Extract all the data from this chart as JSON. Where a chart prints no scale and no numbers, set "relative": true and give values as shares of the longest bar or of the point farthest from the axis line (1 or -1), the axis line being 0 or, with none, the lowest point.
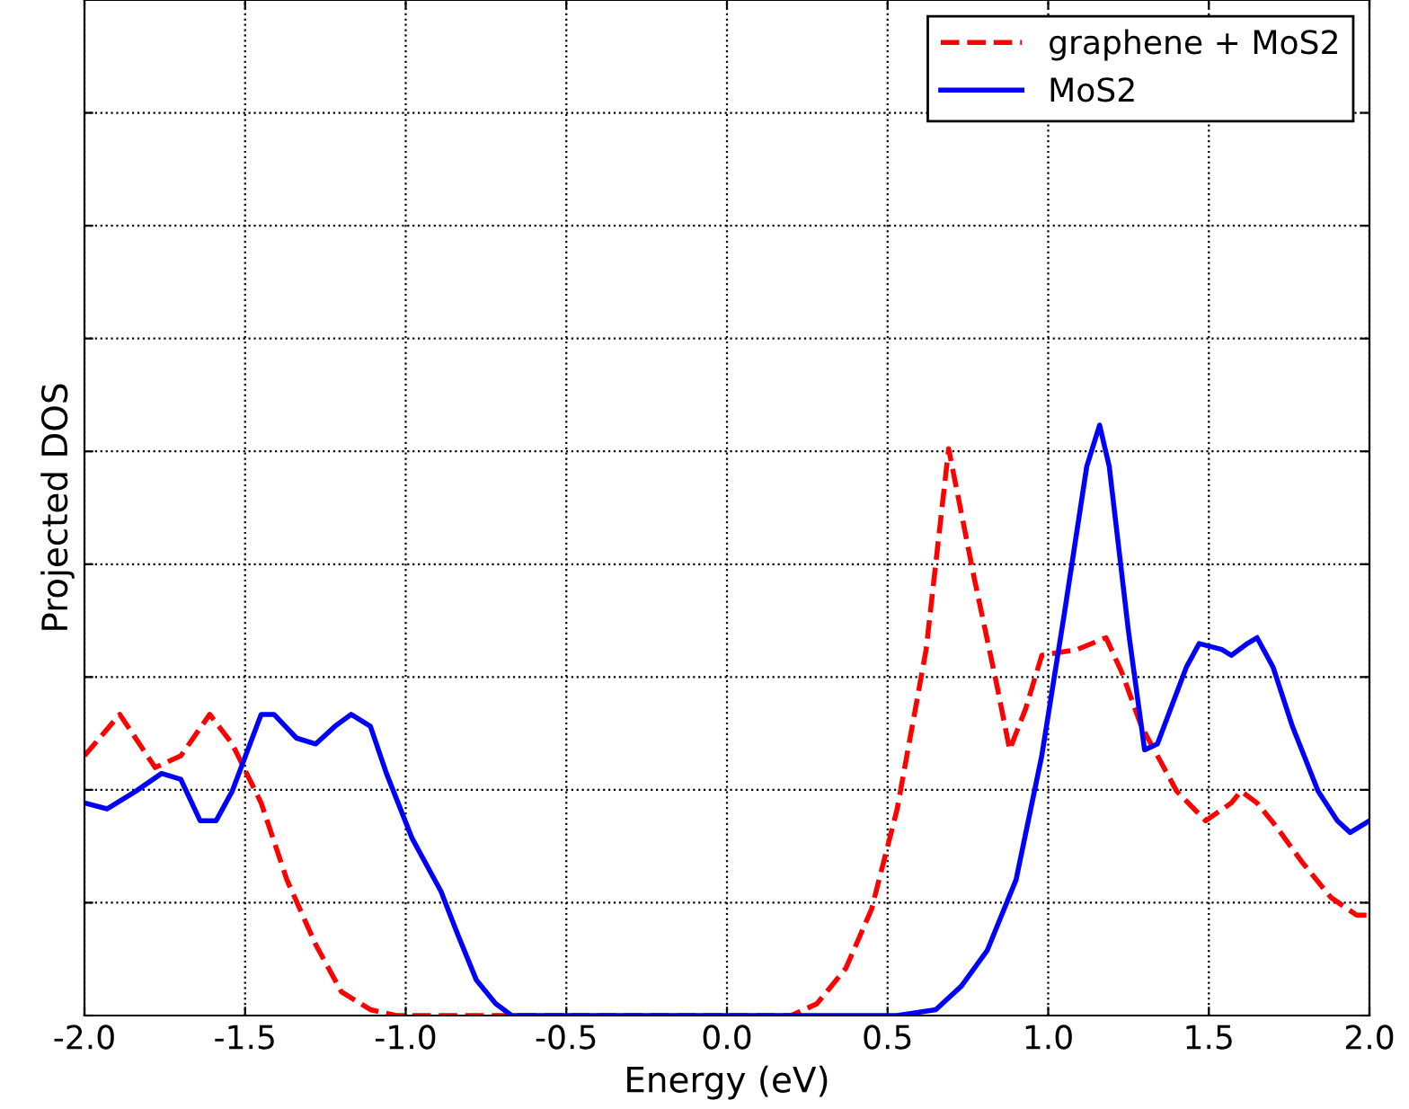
{
  "chart_data": {
    "type": "line",
    "xlabel": "Energy (eV)",
    "ylabel": "Projected DOS",
    "relative": true,
    "grid": true,
    "legend": "top right",
    "xlim": [
      -2.0,
      2.0
    ],
    "xticks": [
      {
        "value": -2.0,
        "label": "-2.0"
      },
      {
        "value": -1.5,
        "label": "-1.5"
      },
      {
        "value": -1.0,
        "label": "-1.0"
      },
      {
        "value": -0.5,
        "label": "-0.5"
      },
      {
        "value": 0.0,
        "label": "0.0"
      },
      {
        "value": 0.5,
        "label": "0.5"
      },
      {
        "value": 1.0,
        "label": "1.0"
      },
      {
        "value": 1.5,
        "label": "1.5"
      },
      {
        "value": 2.0,
        "label": "2.0"
      }
    ],
    "tick_labels": "x",
    "series": [
      {
        "name": "graphene + MoS2",
        "color": "#ff0000",
        "line_style": "dashed",
        "x": [
          -2.0,
          -1.89,
          -1.78,
          -1.7,
          -1.61,
          -1.54,
          -1.45,
          -1.37,
          -1.28,
          -1.2,
          -1.11,
          -1.03,
          -0.86,
          0.2,
          0.28,
          0.37,
          0.45,
          0.53,
          0.62,
          0.69,
          0.77,
          0.84,
          0.88,
          0.93,
          0.98,
          1.09,
          1.18,
          1.23,
          1.29,
          1.35,
          1.4,
          1.49,
          1.57,
          1.6,
          1.65,
          1.71,
          1.79,
          1.88,
          1.96,
          2.0
        ],
        "values": [
          0.44,
          0.51,
          0.42,
          0.44,
          0.51,
          0.46,
          0.36,
          0.23,
          0.12,
          0.04,
          0.01,
          0,
          0,
          0,
          0.02,
          0.08,
          0.18,
          0.35,
          0.62,
          0.96,
          0.74,
          0.56,
          0.45,
          0.52,
          0.61,
          0.62,
          0.64,
          0.58,
          0.49,
          0.43,
          0.38,
          0.33,
          0.36,
          0.38,
          0.36,
          0.32,
          0.26,
          0.2,
          0.17,
          0.17
        ]
      },
      {
        "name": "MoS2",
        "color": "#0000ff",
        "line_style": "solid",
        "x": [
          -2.0,
          -1.93,
          -1.84,
          -1.76,
          -1.7,
          -1.64,
          -1.59,
          -1.54,
          -1.45,
          -1.41,
          -1.34,
          -1.28,
          -1.22,
          -1.17,
          -1.11,
          -1.06,
          -0.98,
          -0.89,
          -0.84,
          -0.78,
          -0.72,
          -0.67,
          0.53,
          0.65,
          0.73,
          0.81,
          0.9,
          0.98,
          1.05,
          1.12,
          1.16,
          1.19,
          1.25,
          1.3,
          1.34,
          1.43,
          1.47,
          1.54,
          1.57,
          1.62,
          1.65,
          1.7,
          1.76,
          1.84,
          1.9,
          1.94,
          2.0
        ],
        "values": [
          0.36,
          0.35,
          0.38,
          0.41,
          0.4,
          0.33,
          0.33,
          0.38,
          0.51,
          0.51,
          0.47,
          0.46,
          0.49,
          0.51,
          0.49,
          0.41,
          0.3,
          0.21,
          0.14,
          0.06,
          0.02,
          0,
          0,
          0.01,
          0.05,
          0.11,
          0.23,
          0.44,
          0.68,
          0.93,
          1.0,
          0.93,
          0.65,
          0.45,
          0.46,
          0.59,
          0.63,
          0.62,
          0.61,
          0.63,
          0.64,
          0.59,
          0.49,
          0.38,
          0.33,
          0.31,
          0.33
        ]
      }
    ]
  }
}
